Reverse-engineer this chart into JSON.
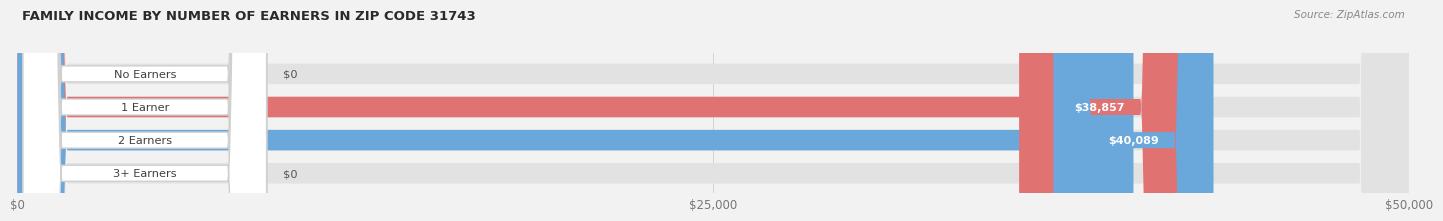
{
  "title": "FAMILY INCOME BY NUMBER OF EARNERS IN ZIP CODE 31743",
  "source": "Source: ZipAtlas.com",
  "categories": [
    "No Earners",
    "1 Earner",
    "2 Earners",
    "3+ Earners"
  ],
  "values": [
    0,
    38857,
    40089,
    0
  ],
  "bar_colors": [
    "#f0b97c",
    "#e07272",
    "#6aa8dc",
    "#c3a0d8"
  ],
  "value_labels": [
    "$0",
    "$38,857",
    "$40,089",
    "$0"
  ],
  "xlim": [
    0,
    50000
  ],
  "xticks": [
    0,
    25000,
    50000
  ],
  "xtick_labels": [
    "$0",
    "$25,000",
    "$50,000"
  ],
  "background_color": "#f2f2f2",
  "bar_background": "#e2e2e2",
  "fig_width": 14.06,
  "fig_height": 2.33
}
